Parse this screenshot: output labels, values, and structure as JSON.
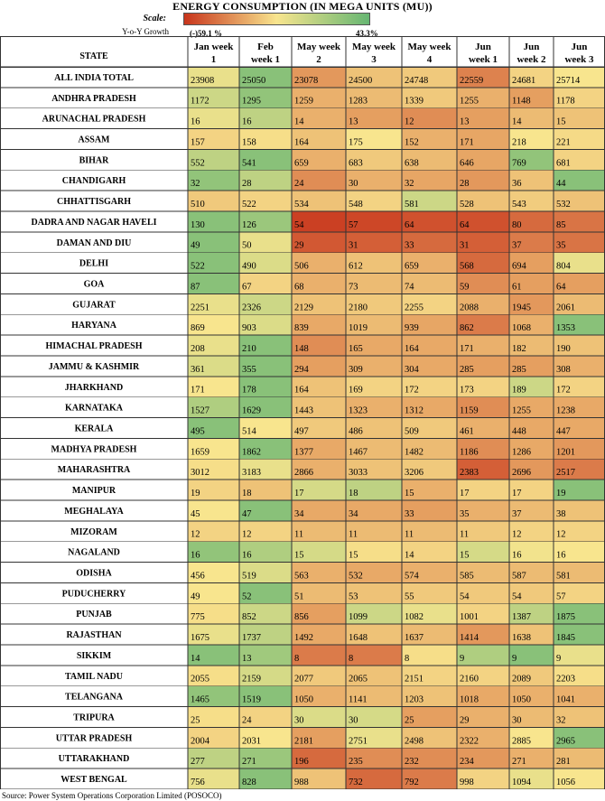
{
  "header": {
    "title": "ENERGY CONSUMPTION (IN MEGA UNITS (MU))",
    "scale_label": "Scale:",
    "yoy_label": "Y-o-Y Growth",
    "scale_min_label": "(-)59.1 %",
    "scale_max_label": "43.3%"
  },
  "colors": {
    "low": "#c8351c",
    "mid": "#f8e58e",
    "high": "#66b672"
  },
  "footer": {
    "source": "Source: Power System Operations Corporation Limited (POSOCO)"
  },
  "chart_data": {
    "type": "heatmap",
    "title": "ENERGY CONSUMPTION (IN MEGA UNITS (MU))",
    "color_scale": {
      "label": "Y-o-Y Growth",
      "min_label": "(-)59.1 %",
      "max_label": "43.3%"
    },
    "row_header": "STATE",
    "columns": [
      {
        "line1": "Jan week",
        "line2": "1"
      },
      {
        "line1": "Feb",
        "line2": "week 1"
      },
      {
        "line1": "May week",
        "line2": "2"
      },
      {
        "line1": "May week",
        "line2": "3"
      },
      {
        "line1": "May week",
        "line2": "4"
      },
      {
        "line1": "Jun",
        "line2": "week 1"
      },
      {
        "line1": "Jun",
        "line2": "week 2"
      },
      {
        "line1": "Jun",
        "line2": "week 3"
      }
    ],
    "rows": [
      {
        "state": "ALL INDIA TOTAL",
        "values": [
          23908,
          25050,
          23078,
          24500,
          24748,
          22559,
          24681,
          25714
        ],
        "colors": [
          0.55,
          0.88,
          0.28,
          0.4,
          0.42,
          0.22,
          0.45,
          0.5
        ]
      },
      {
        "state": "ANDHRA PRADESH",
        "values": [
          1172,
          1295,
          1259,
          1283,
          1339,
          1255,
          1148,
          1178
        ],
        "colors": [
          0.65,
          0.85,
          0.35,
          0.38,
          0.42,
          0.35,
          0.3,
          0.45
        ]
      },
      {
        "state": "ARUNACHAL PRADESH",
        "values": [
          16,
          16,
          14,
          13,
          12,
          13,
          14,
          15
        ],
        "colors": [
          0.55,
          0.7,
          0.35,
          0.3,
          0.25,
          0.3,
          0.38,
          0.4
        ]
      },
      {
        "state": "ASSAM",
        "values": [
          157,
          158,
          164,
          175,
          152,
          171,
          218,
          221
        ],
        "colors": [
          0.45,
          0.48,
          0.4,
          0.5,
          0.35,
          0.32,
          0.5,
          0.47
        ]
      },
      {
        "state": "BIHAR",
        "values": [
          552,
          541,
          659,
          683,
          638,
          646,
          769,
          681
        ],
        "colors": [
          0.7,
          0.88,
          0.35,
          0.42,
          0.38,
          0.32,
          0.85,
          0.45
        ]
      },
      {
        "state": "CHANDIGARH",
        "values": [
          32,
          28,
          24,
          30,
          32,
          28,
          36,
          44
        ],
        "colors": [
          0.85,
          0.7,
          0.25,
          0.35,
          0.32,
          0.28,
          0.4,
          0.88
        ]
      },
      {
        "state": "CHHATTISGARH",
        "values": [
          510,
          522,
          534,
          548,
          581,
          528,
          543,
          532
        ],
        "colors": [
          0.42,
          0.45,
          0.4,
          0.45,
          0.65,
          0.4,
          0.43,
          0.4
        ]
      },
      {
        "state": "DADRA AND NAGAR HAVELI",
        "values": [
          130,
          126,
          54,
          57,
          64,
          64,
          80,
          85
        ],
        "colors": [
          0.88,
          0.82,
          0.03,
          0.05,
          0.08,
          0.08,
          0.15,
          0.18
        ]
      },
      {
        "state": "DAMAN AND DIU",
        "values": [
          49,
          50,
          29,
          31,
          33,
          31,
          37,
          35
        ],
        "colors": [
          0.88,
          0.55,
          0.1,
          0.12,
          0.15,
          0.12,
          0.2,
          0.18
        ]
      },
      {
        "state": "DELHI",
        "values": [
          522,
          490,
          506,
          612,
          659,
          568,
          694,
          804
        ],
        "colors": [
          0.88,
          0.6,
          0.35,
          0.4,
          0.35,
          0.15,
          0.3,
          0.55
        ]
      },
      {
        "state": "GOA",
        "values": [
          87,
          67,
          68,
          73,
          74,
          59,
          61,
          64
        ],
        "colors": [
          0.88,
          0.45,
          0.35,
          0.38,
          0.38,
          0.25,
          0.3,
          0.3
        ]
      },
      {
        "state": "GUJARAT",
        "values": [
          2251,
          2326,
          2129,
          2180,
          2255,
          2088,
          1945,
          2061
        ],
        "colors": [
          0.55,
          0.65,
          0.4,
          0.42,
          0.45,
          0.35,
          0.28,
          0.38
        ]
      },
      {
        "state": "HARYANA",
        "values": [
          869,
          903,
          839,
          1019,
          939,
          862,
          1068,
          1353
        ],
        "colors": [
          0.5,
          0.6,
          0.33,
          0.38,
          0.32,
          0.2,
          0.35,
          0.88
        ]
      },
      {
        "state": "HIMACHAL PRADESH",
        "values": [
          208,
          210,
          148,
          165,
          164,
          171,
          182,
          190
        ],
        "colors": [
          0.55,
          0.88,
          0.25,
          0.33,
          0.33,
          0.35,
          0.38,
          0.4
        ]
      },
      {
        "state": "JAMMU & KASHMIR",
        "values": [
          361,
          355,
          294,
          309,
          304,
          285,
          285,
          308
        ],
        "colors": [
          0.6,
          0.88,
          0.3,
          0.35,
          0.33,
          0.3,
          0.3,
          0.35
        ]
      },
      {
        "state": "JHARKHAND",
        "values": [
          171,
          178,
          164,
          169,
          172,
          173,
          189,
          172
        ],
        "colors": [
          0.5,
          0.88,
          0.4,
          0.45,
          0.45,
          0.45,
          0.65,
          0.45
        ]
      },
      {
        "state": "KARNATAKA",
        "values": [
          1527,
          1629,
          1443,
          1323,
          1312,
          1159,
          1255,
          1238
        ],
        "colors": [
          0.75,
          0.88,
          0.4,
          0.35,
          0.33,
          0.25,
          0.33,
          0.33
        ]
      },
      {
        "state": "KERALA",
        "values": [
          495,
          514,
          497,
          486,
          509,
          461,
          448,
          447
        ],
        "colors": [
          0.88,
          0.5,
          0.42,
          0.4,
          0.42,
          0.35,
          0.33,
          0.33
        ]
      },
      {
        "state": "MADHYA PRADESH",
        "values": [
          1659,
          1862,
          1377,
          1467,
          1482,
          1186,
          1286,
          1201
        ],
        "colors": [
          0.5,
          0.88,
          0.33,
          0.38,
          0.38,
          0.25,
          0.33,
          0.28
        ]
      },
      {
        "state": "MAHARASHTRA",
        "values": [
          3012,
          3183,
          2866,
          3033,
          3206,
          2383,
          2696,
          2517
        ],
        "colors": [
          0.48,
          0.55,
          0.35,
          0.4,
          0.42,
          0.12,
          0.28,
          0.2
        ]
      },
      {
        "state": "MANIPUR",
        "values": [
          19,
          18,
          17,
          18,
          15,
          17,
          17,
          19
        ],
        "colors": [
          0.45,
          0.4,
          0.62,
          0.7,
          0.35,
          0.45,
          0.45,
          0.88
        ]
      },
      {
        "state": "MEGHALAYA",
        "values": [
          45,
          47,
          34,
          34,
          33,
          35,
          37,
          38
        ],
        "colors": [
          0.5,
          0.88,
          0.33,
          0.33,
          0.3,
          0.35,
          0.38,
          0.4
        ]
      },
      {
        "state": "MIZORAM",
        "values": [
          12,
          12,
          11,
          11,
          11,
          11,
          12,
          12
        ],
        "colors": [
          0.45,
          0.45,
          0.38,
          0.38,
          0.38,
          0.42,
          0.45,
          0.45
        ]
      },
      {
        "state": "NAGALAND",
        "values": [
          16,
          16,
          15,
          15,
          14,
          15,
          16,
          16
        ],
        "colors": [
          0.85,
          0.75,
          0.62,
          0.48,
          0.45,
          0.62,
          0.52,
          0.5
        ]
      },
      {
        "state": "ODISHA",
        "values": [
          456,
          519,
          563,
          532,
          574,
          585,
          587,
          581
        ],
        "colors": [
          0.5,
          0.6,
          0.35,
          0.33,
          0.35,
          0.38,
          0.38,
          0.38
        ]
      },
      {
        "state": "PUDUCHERRY",
        "values": [
          49,
          52,
          51,
          53,
          55,
          54,
          54,
          57
        ],
        "colors": [
          0.5,
          0.88,
          0.38,
          0.4,
          0.42,
          0.42,
          0.42,
          0.45
        ]
      },
      {
        "state": "PUNJAB",
        "values": [
          775,
          852,
          856,
          1099,
          1082,
          1001,
          1387,
          1875
        ],
        "colors": [
          0.48,
          0.65,
          0.3,
          0.65,
          0.55,
          0.45,
          0.7,
          0.88
        ]
      },
      {
        "state": "RAJASTHAN",
        "values": [
          1675,
          1737,
          1492,
          1648,
          1637,
          1414,
          1638,
          1845
        ],
        "colors": [
          0.55,
          0.7,
          0.33,
          0.4,
          0.38,
          0.28,
          0.4,
          0.88
        ]
      },
      {
        "state": "SIKKIM",
        "values": [
          14,
          13,
          8,
          8,
          8,
          9,
          9,
          9
        ],
        "colors": [
          0.88,
          0.8,
          0.2,
          0.2,
          0.48,
          0.75,
          0.88,
          0.55
        ]
      },
      {
        "state": "TAMIL NADU",
        "values": [
          2055,
          2159,
          2077,
          2065,
          2151,
          2160,
          2089,
          2203
        ],
        "colors": [
          0.48,
          0.62,
          0.42,
          0.4,
          0.45,
          0.45,
          0.42,
          0.48
        ]
      },
      {
        "state": "TELANGANA",
        "values": [
          1465,
          1519,
          1050,
          1141,
          1203,
          1018,
          1050,
          1041
        ],
        "colors": [
          0.85,
          0.88,
          0.35,
          0.38,
          0.4,
          0.33,
          0.35,
          0.35
        ]
      },
      {
        "state": "TRIPURA",
        "values": [
          25,
          24,
          30,
          30,
          25,
          29,
          30,
          32
        ],
        "colors": [
          0.48,
          0.45,
          0.6,
          0.62,
          0.3,
          0.35,
          0.38,
          0.4
        ]
      },
      {
        "state": "UTTAR PRADESH",
        "values": [
          2004,
          2031,
          2181,
          2751,
          2498,
          2322,
          2885,
          2965
        ],
        "colors": [
          0.45,
          0.5,
          0.3,
          0.55,
          0.4,
          0.35,
          0.5,
          0.88
        ]
      },
      {
        "state": "UTTARAKHAND",
        "values": [
          277,
          271,
          196,
          235,
          232,
          234,
          271,
          281
        ],
        "colors": [
          0.7,
          0.82,
          0.15,
          0.25,
          0.25,
          0.28,
          0.35,
          0.38
        ]
      },
      {
        "state": "WEST BENGAL",
        "values": [
          756,
          828,
          988,
          732,
          792,
          998,
          1094,
          1056
        ],
        "colors": [
          0.55,
          0.88,
          0.4,
          0.15,
          0.2,
          0.45,
          0.55,
          0.5
        ]
      }
    ]
  }
}
